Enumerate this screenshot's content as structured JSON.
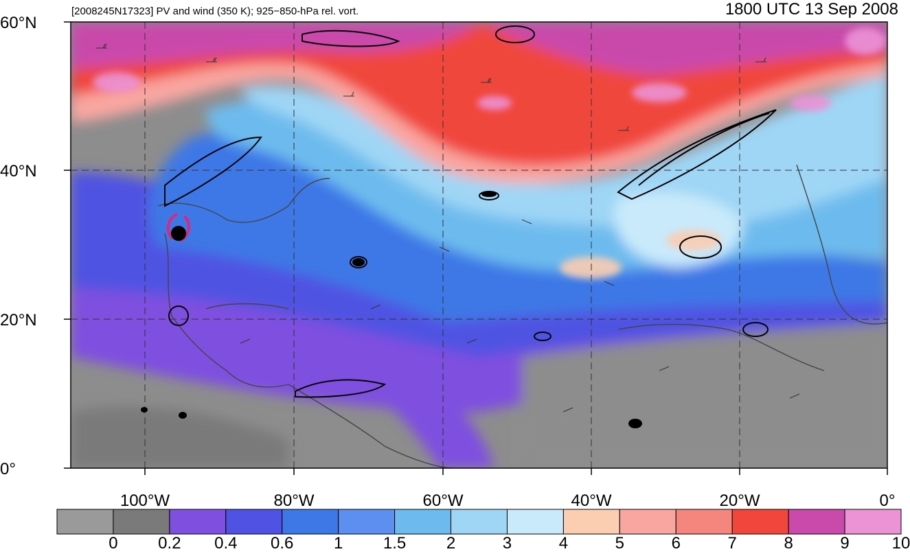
{
  "header": {
    "subtitle": "[2008245N17323] PV and wind (350 K); 925−850-hPa rel. vort.",
    "timestamp": "1800 UTC 13 Sep 2008"
  },
  "axes": {
    "lat_labels": [
      "60°N",
      "40°N",
      "20°N",
      "0°"
    ],
    "lon_labels": [
      "100°W",
      "80°W",
      "60°W",
      "40°W",
      "20°W",
      "0°"
    ]
  },
  "colorbar": {
    "labels": [
      "0",
      "0.2",
      "0.4",
      "0.6",
      "1",
      "1.5",
      "2",
      "3",
      "4",
      "5",
      "6",
      "7",
      "8",
      "9",
      "10"
    ],
    "colors": [
      "#9a9a9a",
      "#7a7a7a",
      "#7f4fe0",
      "#4f52e2",
      "#3d78e6",
      "#5c8ff0",
      "#6dbbee",
      "#9fd6f5",
      "#c9eafb",
      "#fbcdb1",
      "#f9a6a0",
      "#f5867e",
      "#f0463c",
      "#c94aab",
      "#ec93d6"
    ]
  },
  "map": {
    "storm_marker_color": "#e0267a"
  }
}
